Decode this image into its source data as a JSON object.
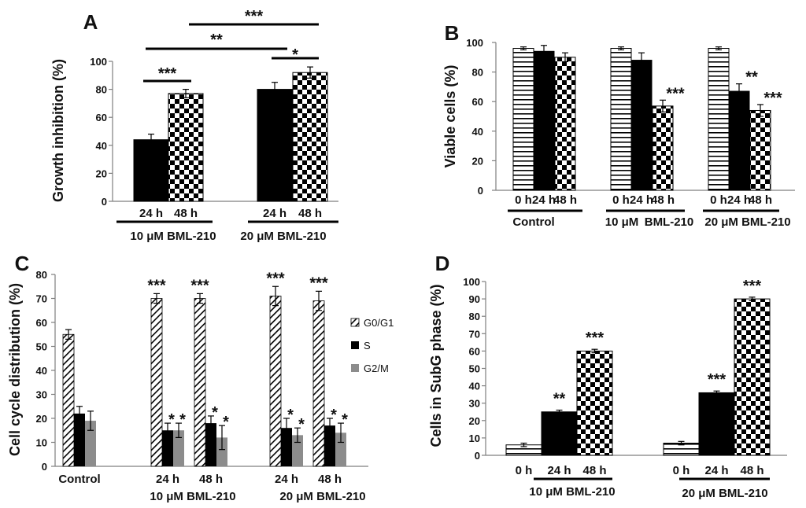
{
  "chart_data": [
    {
      "panel": "A",
      "type": "bar",
      "ylabel": "Growth inhibition (%)",
      "ylim": [
        0,
        100
      ],
      "yticks": [
        "0",
        "20",
        "40",
        "60",
        "80",
        "100"
      ],
      "bars": [
        {
          "label": "24 h",
          "value": 44,
          "err": 4,
          "pattern": "black"
        },
        {
          "label": "48 h",
          "value": 77,
          "err": 3,
          "pattern": "checker"
        },
        {
          "label": "24 h",
          "value": 80,
          "err": 5,
          "pattern": "black"
        },
        {
          "label": "48 h",
          "value": 92,
          "err": 4,
          "pattern": "checker"
        }
      ],
      "groups": [
        "10 μM BML-210",
        "20 μM BML-210"
      ],
      "significance": [
        {
          "text": "***",
          "from": 0,
          "to": 1
        },
        {
          "text": "**",
          "from": 0,
          "to": 2
        },
        {
          "text": "***",
          "from": 1,
          "to": 3
        },
        {
          "text": "*",
          "from": 2,
          "to": 3
        }
      ]
    },
    {
      "panel": "B",
      "type": "bar",
      "ylabel": "Viable cells (%)",
      "ylim": [
        0,
        100
      ],
      "yticks": [
        "0",
        "20",
        "40",
        "60",
        "80",
        "100"
      ],
      "bars": [
        {
          "label": "0 h",
          "value": 96,
          "err": 1,
          "pattern": "hstripe",
          "star": ""
        },
        {
          "label": "24 h",
          "value": 94,
          "err": 4,
          "pattern": "black",
          "star": ""
        },
        {
          "label": "48 h",
          "value": 90,
          "err": 3,
          "pattern": "checker",
          "star": ""
        },
        {
          "label": "0 h",
          "value": 96,
          "err": 1,
          "pattern": "hstripe",
          "star": ""
        },
        {
          "label": "24 h",
          "value": 88,
          "err": 5,
          "pattern": "black",
          "star": ""
        },
        {
          "label": "48 h",
          "value": 57,
          "err": 4,
          "pattern": "checker",
          "star": "***"
        },
        {
          "label": "0 h",
          "value": 96,
          "err": 1,
          "pattern": "hstripe",
          "star": ""
        },
        {
          "label": "24 h",
          "value": 67,
          "err": 5,
          "pattern": "black",
          "star": "**"
        },
        {
          "label": "48 h",
          "value": 54,
          "err": 4,
          "pattern": "checker",
          "star": "***"
        }
      ],
      "groups": [
        "Control",
        "10 μM",
        "BML-210",
        "20 μM BML-210"
      ]
    },
    {
      "panel": "C",
      "type": "bar",
      "ylabel": "Cell cycle distribution (%)",
      "ylim": [
        0,
        80
      ],
      "yticks": [
        "0",
        "10",
        "20",
        "30",
        "40",
        "50",
        "60",
        "70",
        "80"
      ],
      "legend": [
        "G0/G1",
        "S",
        "G2/M"
      ],
      "clusters": [
        {
          "label": "Control",
          "values": [
            55,
            22,
            19
          ],
          "errs": [
            2,
            3,
            4
          ],
          "stars": [
            "",
            "",
            ""
          ]
        },
        {
          "label": "24 h",
          "values": [
            70,
            15,
            15
          ],
          "errs": [
            2,
            3,
            3
          ],
          "stars": [
            "***",
            "*",
            "*"
          ]
        },
        {
          "label": "48 h",
          "values": [
            70,
            18,
            12
          ],
          "errs": [
            2,
            3,
            5
          ],
          "stars": [
            "***",
            "*",
            "*"
          ]
        },
        {
          "label": "24 h",
          "values": [
            71,
            16,
            13
          ],
          "errs": [
            4,
            4,
            3
          ],
          "stars": [
            "***",
            "*",
            "*"
          ]
        },
        {
          "label": "48 h",
          "values": [
            69,
            17,
            14
          ],
          "errs": [
            4,
            3,
            4
          ],
          "stars": [
            "***",
            "*",
            "*"
          ]
        }
      ],
      "groups": [
        "10 μM BML-210",
        "20 μM BML-210"
      ]
    },
    {
      "panel": "D",
      "type": "bar",
      "ylabel": "Cells in SubG phase  (%)",
      "ylim": [
        0,
        100
      ],
      "yticks": [
        "0",
        "10",
        "20",
        "30",
        "40",
        "50",
        "60",
        "70",
        "80",
        "90",
        "100"
      ],
      "bars": [
        {
          "label": "0 h",
          "value": 6,
          "err": 1,
          "pattern": "hstripe",
          "star": ""
        },
        {
          "label": "24 h",
          "value": 25,
          "err": 1,
          "pattern": "black",
          "star": "**"
        },
        {
          "label": "48 h",
          "value": 60,
          "err": 1,
          "pattern": "checker",
          "star": "***"
        },
        {
          "label": "0 h",
          "value": 7,
          "err": 1,
          "pattern": "hstripe",
          "star": ""
        },
        {
          "label": "24 h",
          "value": 36,
          "err": 1,
          "pattern": "black",
          "star": "***"
        },
        {
          "label": "48 h",
          "value": 90,
          "err": 1,
          "pattern": "checker",
          "star": "***"
        }
      ],
      "groups": [
        "10 μM  BML-210",
        "20 μM BML-210"
      ]
    }
  ],
  "colors": {
    "black": "#000000",
    "gray": "#8c8c8c",
    "axis": "#7f7f7f"
  }
}
